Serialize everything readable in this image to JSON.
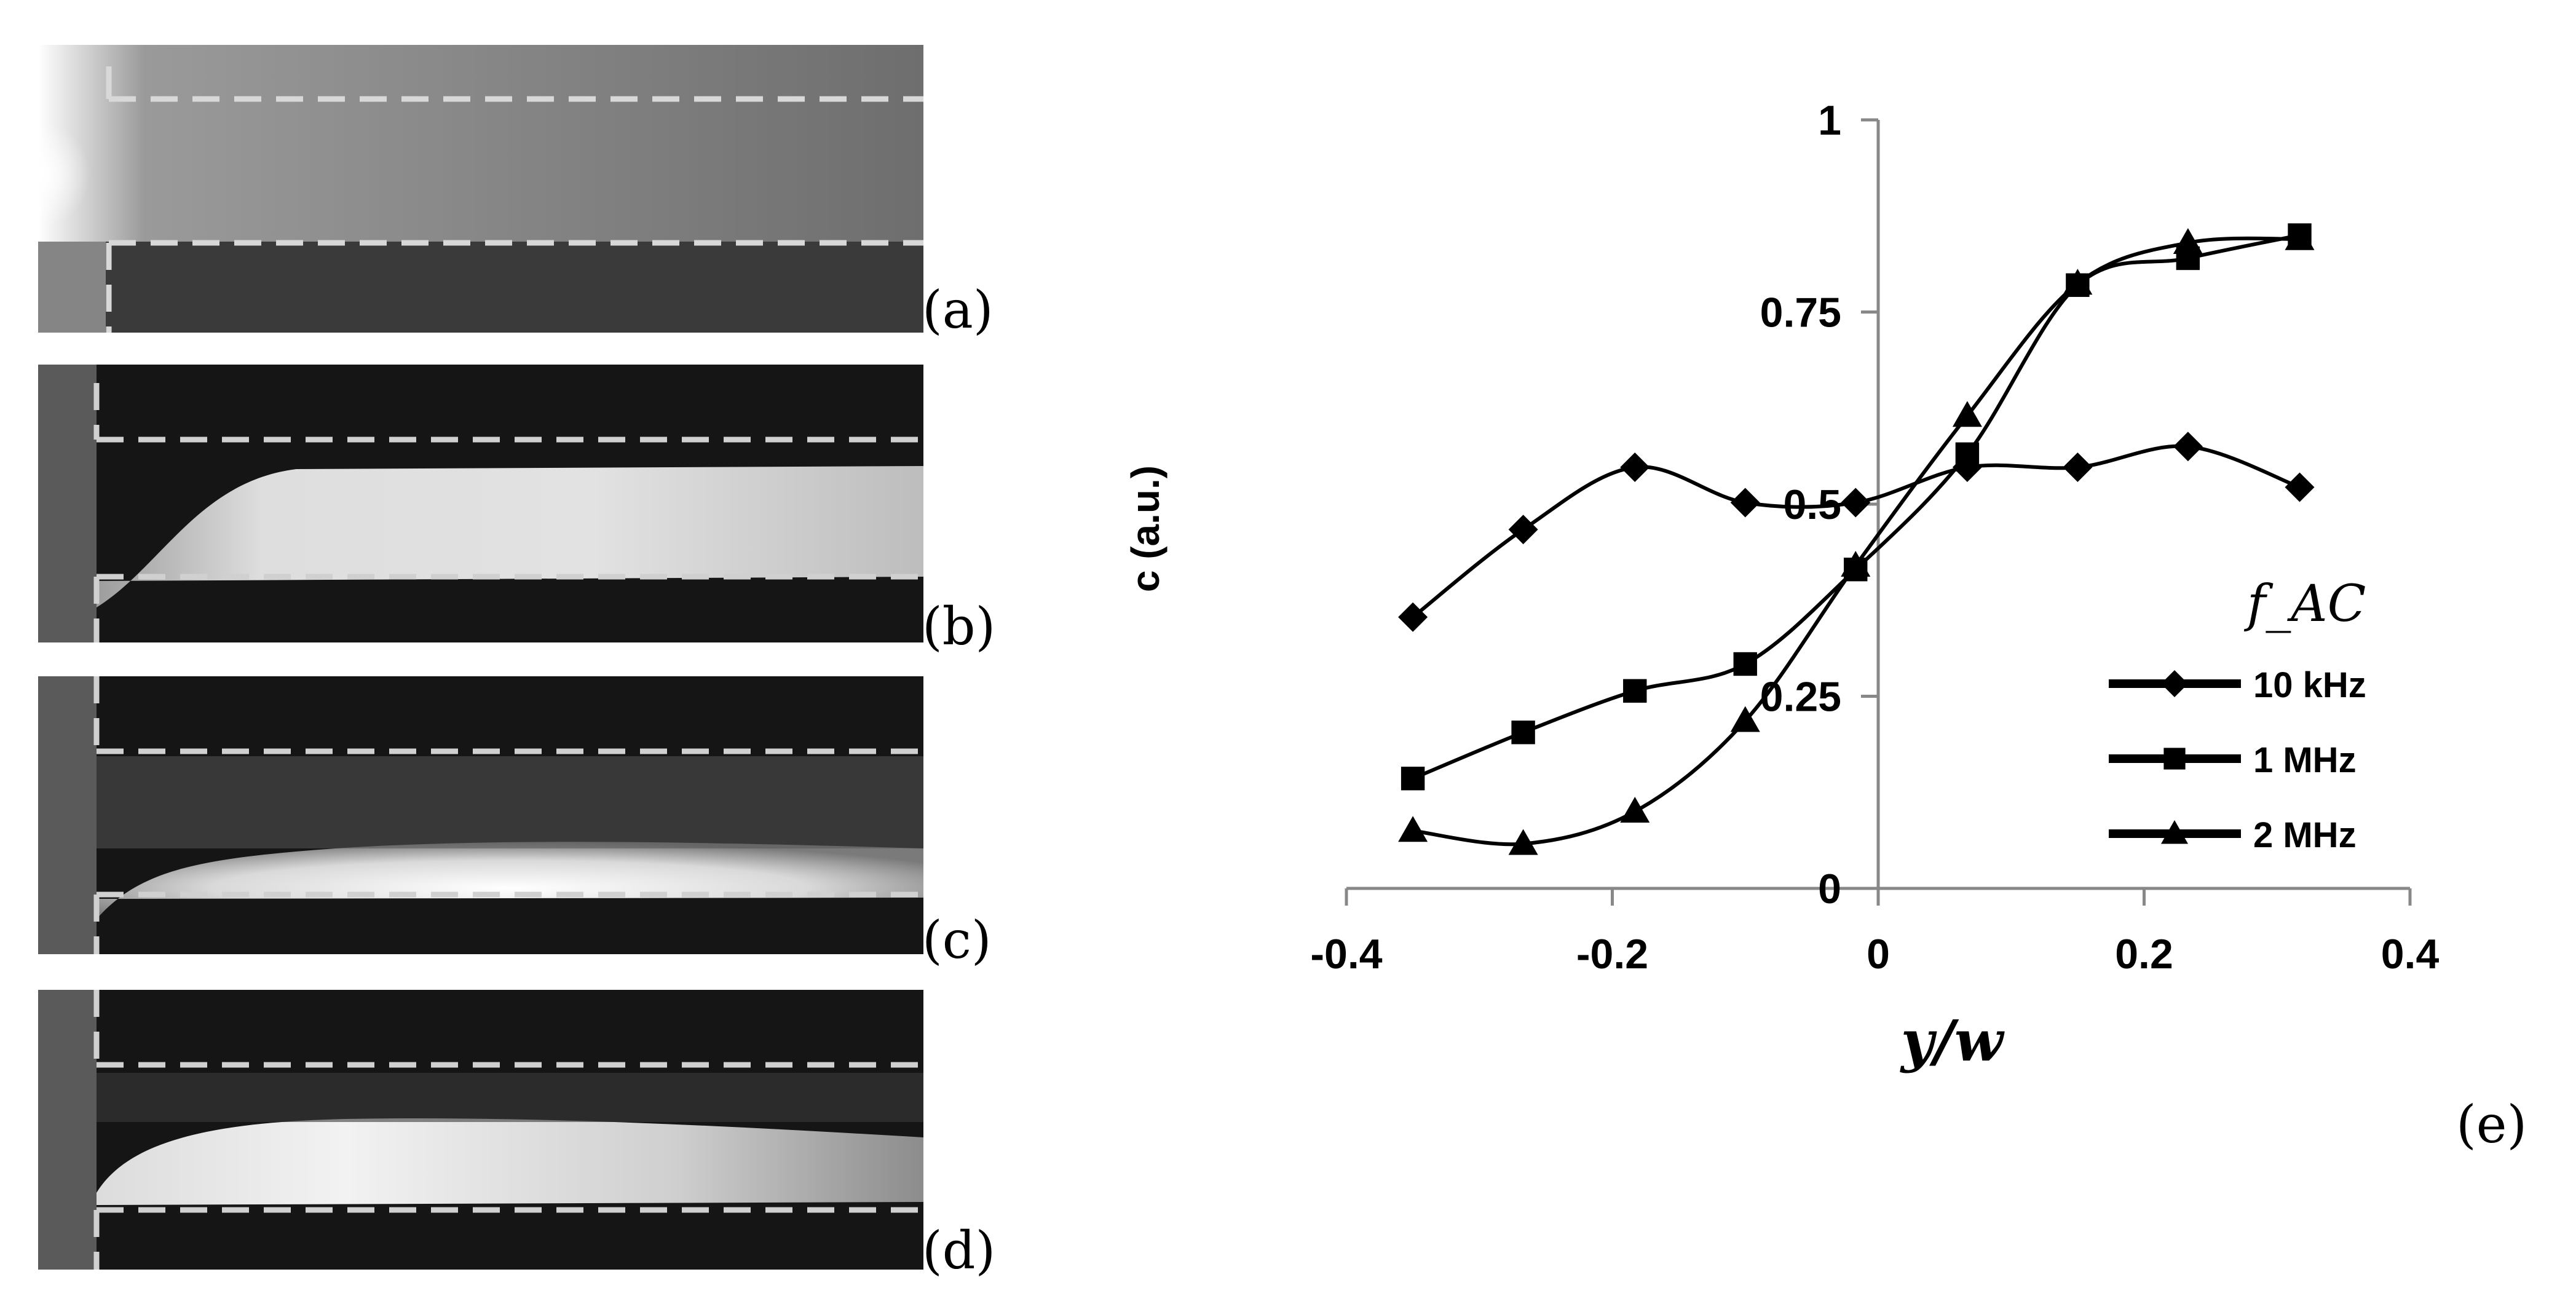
{
  "panels": [
    {
      "label": "(a)"
    },
    {
      "label": "(b)"
    },
    {
      "label": "(c)"
    },
    {
      "label": "(d)"
    }
  ],
  "chart_label": "(e)",
  "chart_data": {
    "type": "scatter",
    "xlabel": "y/w",
    "ylabel": "c (a.u.)",
    "xlim": [
      -0.4,
      0.4
    ],
    "ylim": [
      0,
      1
    ],
    "xticks": [
      "-0.4",
      "-0.2",
      "0",
      "0.2",
      "0.4"
    ],
    "xtick_values": [
      -0.4,
      -0.2,
      0,
      0.2,
      0.4
    ],
    "yticks": [
      "0",
      "0.25",
      "0.5",
      "0.75",
      "1"
    ],
    "ytick_values": [
      0,
      0.25,
      0.5,
      0.75,
      1
    ],
    "grid": false,
    "legend_title": "f_AC",
    "legend_position": "right",
    "x": [
      -0.35,
      -0.267,
      -0.183,
      -0.1,
      -0.017,
      0.067,
      0.15,
      0.233,
      0.317
    ],
    "series": [
      {
        "name": "10 kHz",
        "marker": "diamond",
        "values": [
          0.353,
          0.467,
          0.548,
          0.502,
          0.502,
          0.548,
          0.548,
          0.575,
          0.522
        ]
      },
      {
        "name": "1 MHz",
        "marker": "square",
        "values": [
          0.143,
          0.203,
          0.257,
          0.292,
          0.415,
          0.565,
          0.785,
          0.82,
          0.85
        ]
      },
      {
        "name": "2 MHz",
        "marker": "triangle",
        "values": [
          0.075,
          0.058,
          0.1,
          0.218,
          0.42,
          0.615,
          0.787,
          0.84,
          0.845
        ]
      }
    ],
    "colors": {
      "marks": "#000000"
    }
  }
}
